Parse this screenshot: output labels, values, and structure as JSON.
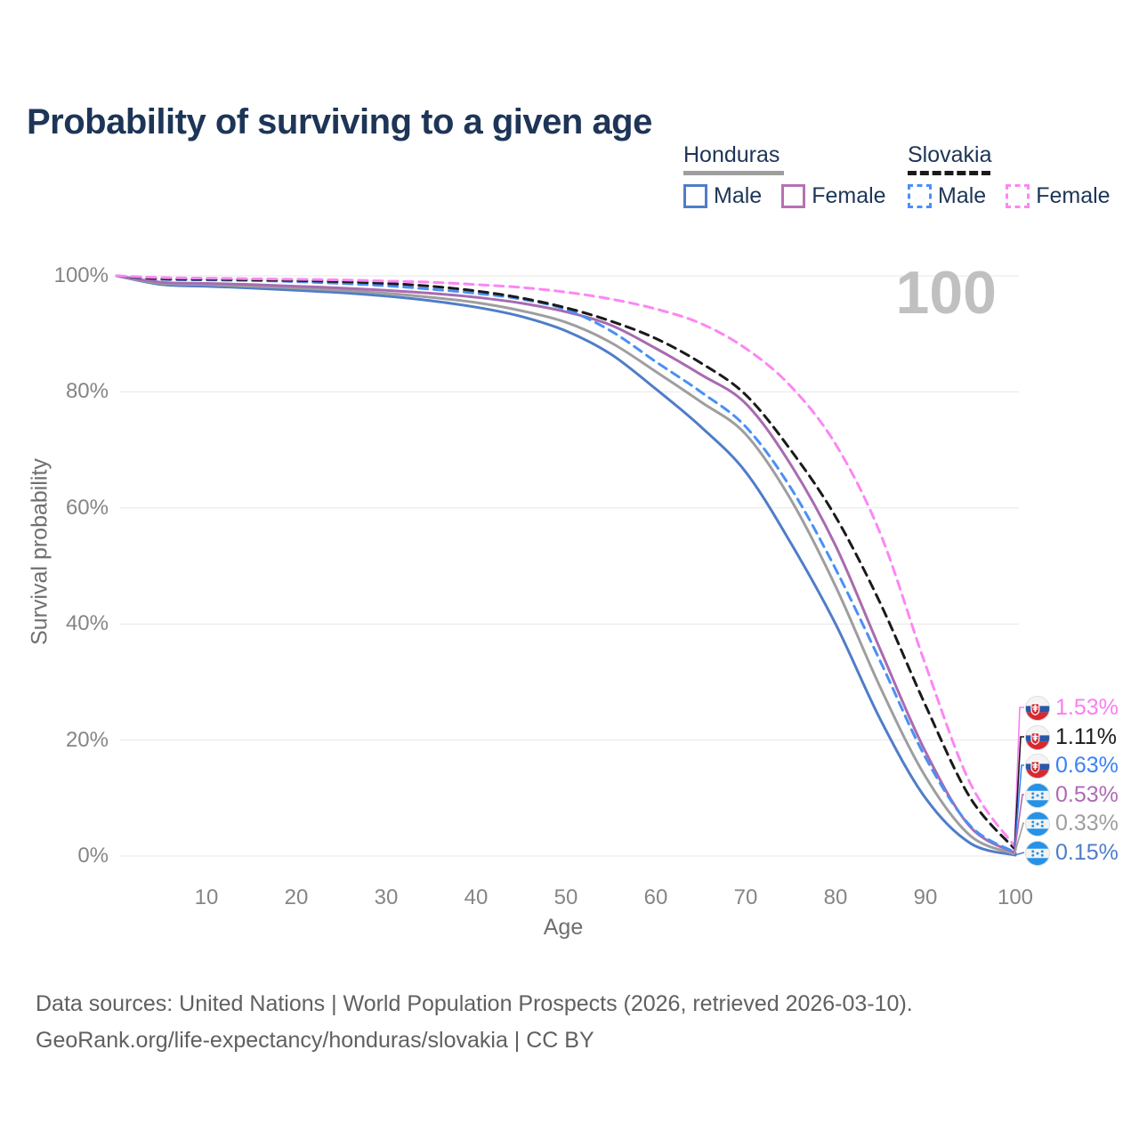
{
  "title": "Probability of surviving to a given age",
  "watermark": "100",
  "legend": {
    "groups": [
      {
        "country": "Honduras",
        "underline_color": "#9e9e9e",
        "underline_style": "solid",
        "items": [
          {
            "label": "Male",
            "color": "#4f7dc8",
            "style": "solid"
          },
          {
            "label": "Female",
            "color": "#b671b3",
            "style": "solid"
          }
        ]
      },
      {
        "country": "Slovakia",
        "underline_color": "#1a1a1a",
        "underline_style": "dashed",
        "items": [
          {
            "label": "Male",
            "color": "#4a90f4",
            "style": "dashed"
          },
          {
            "label": "Female",
            "color": "#fb87f3",
            "style": "dashed"
          }
        ]
      }
    ]
  },
  "chart_data": {
    "type": "line",
    "title": "Probability of surviving to a given age",
    "xlabel": "Age",
    "ylabel": "Survival probability",
    "xlim": [
      0,
      100
    ],
    "ylim": [
      0,
      100
    ],
    "grid": "horizontal-only",
    "legend_position": "top-right",
    "x": [
      0,
      5,
      10,
      15,
      20,
      25,
      30,
      35,
      40,
      45,
      50,
      55,
      60,
      65,
      70,
      75,
      80,
      85,
      90,
      95,
      100
    ],
    "x_ticks": [
      {
        "v": 10,
        "label": "10"
      },
      {
        "v": 20,
        "label": "20"
      },
      {
        "v": 30,
        "label": "30"
      },
      {
        "v": 40,
        "label": "40"
      },
      {
        "v": 50,
        "label": "50"
      },
      {
        "v": 60,
        "label": "60"
      },
      {
        "v": 70,
        "label": "70"
      },
      {
        "v": 80,
        "label": "80"
      },
      {
        "v": 90,
        "label": "90"
      },
      {
        "v": 100,
        "label": "100"
      }
    ],
    "y_ticks": [
      {
        "v": 0,
        "label": "0%"
      },
      {
        "v": 20,
        "label": "20%"
      },
      {
        "v": 40,
        "label": "40%"
      },
      {
        "v": 60,
        "label": "60%"
      },
      {
        "v": 80,
        "label": "80%"
      },
      {
        "v": 100,
        "label": "100%"
      }
    ],
    "series": [
      {
        "name": "Honduras Male",
        "country": "Honduras",
        "sex": "Male",
        "color": "#4f7dc8",
        "dashed": false,
        "values": [
          100,
          98.5,
          98.2,
          97.9,
          97.5,
          97.1,
          96.5,
          95.7,
          94.6,
          93.0,
          90.5,
          86.5,
          80.5,
          74.0,
          66.2,
          54.0,
          40.0,
          23.5,
          10.0,
          2.2,
          0.15
        ],
        "end_label": {
          "text": "0.15%",
          "color": "#4f7dc8",
          "flag": "honduras"
        }
      },
      {
        "name": "Honduras Both sexes",
        "country": "Honduras",
        "sex": "Both",
        "color": "#9e9e9e",
        "dashed": false,
        "values": [
          100,
          98.7,
          98.5,
          98.2,
          97.9,
          97.5,
          97.0,
          96.3,
          95.4,
          94.0,
          92.0,
          88.5,
          83.5,
          78.3,
          72.7,
          61.5,
          46.5,
          29.0,
          13.7,
          3.5,
          0.33
        ],
        "end_label": {
          "text": "0.33%",
          "color": "#9e9e9e",
          "flag": "honduras"
        }
      },
      {
        "name": "Honduras Female",
        "country": "Honduras",
        "sex": "Female",
        "color": "#a86bb0",
        "dashed": false,
        "values": [
          100,
          98.9,
          98.7,
          98.5,
          98.2,
          97.9,
          97.5,
          97.0,
          96.3,
          95.3,
          93.8,
          91.5,
          87.5,
          83.0,
          78.0,
          67.5,
          53.5,
          35.5,
          18.0,
          5.0,
          0.53
        ],
        "end_label": {
          "text": "0.53%",
          "color": "#b06ab4",
          "flag": "honduras"
        }
      },
      {
        "name": "Slovakia Male",
        "country": "Slovakia",
        "sex": "Male",
        "color": "#4a90f4",
        "dashed": true,
        "values": [
          100,
          99.4,
          99.3,
          99.2,
          99.0,
          98.7,
          98.3,
          97.7,
          97.0,
          96.0,
          94.2,
          90.5,
          85.2,
          80.0,
          74.0,
          63.5,
          49.5,
          33.5,
          17.0,
          5.2,
          0.63
        ],
        "end_label": {
          "text": "0.63%",
          "color": "#3b82f6",
          "flag": "slovakia"
        }
      },
      {
        "name": "Slovakia Both sexes",
        "country": "Slovakia",
        "sex": "Both",
        "color": "#1a1a1a",
        "dashed": true,
        "values": [
          100,
          99.5,
          99.4,
          99.3,
          99.2,
          99.0,
          98.7,
          98.2,
          97.4,
          96.2,
          94.5,
          92.2,
          89.2,
          85.0,
          79.5,
          70.0,
          58.5,
          43.5,
          26.0,
          10.0,
          1.11
        ],
        "end_label": {
          "text": "1.11%",
          "color": "#1a1a1a",
          "flag": "slovakia"
        }
      },
      {
        "name": "Slovakia Female",
        "country": "Slovakia",
        "sex": "Female",
        "color": "#fb87f3",
        "dashed": true,
        "values": [
          100,
          99.7,
          99.6,
          99.5,
          99.4,
          99.3,
          99.1,
          98.9,
          98.5,
          98.0,
          97.2,
          96.0,
          94.3,
          91.8,
          87.5,
          81.0,
          71.0,
          55.5,
          33.0,
          12.5,
          1.53
        ],
        "end_label": {
          "text": "1.53%",
          "color": "#fb7df2",
          "flag": "slovakia"
        }
      }
    ]
  },
  "flags": {
    "slovakia": {
      "white": "#f4f4f4",
      "blue": "#2b57a7",
      "red": "#d7282f"
    },
    "honduras": {
      "blue": "#2492e8",
      "white": "#f2f2f2"
    }
  },
  "footer": {
    "line1": "Data sources: United Nations | World Population Prospects (2026, retrieved 2026-03-10).",
    "line2": "GeoRank.org/life-expectancy/honduras/slovakia | CC BY"
  }
}
